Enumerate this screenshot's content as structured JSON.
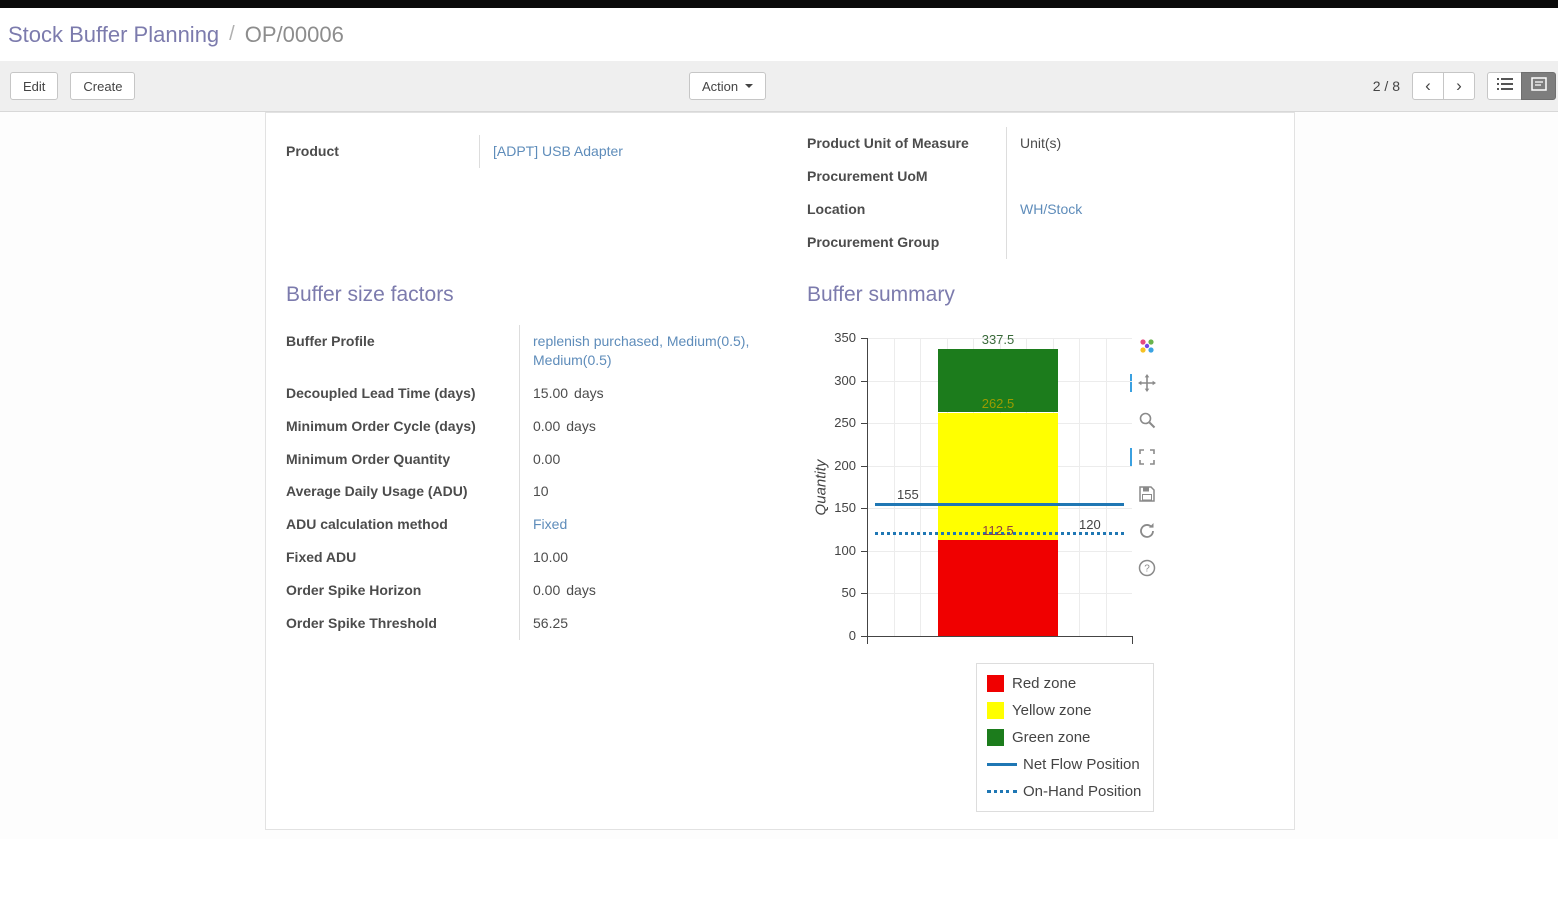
{
  "breadcrumb": {
    "root": "Stock Buffer Planning",
    "separator": "/",
    "current": "OP/00006"
  },
  "control_panel": {
    "edit_label": "Edit",
    "create_label": "Create",
    "action_label": "Action",
    "pager": "2 / 8",
    "prev_arrow": "‹",
    "next_arrow": "›"
  },
  "form": {
    "top_left_fields": [
      {
        "label": "Product",
        "value": "[ADPT] USB Adapter",
        "link": true
      }
    ],
    "top_right_fields": [
      {
        "label": "Product Unit of Measure",
        "value": "Unit(s)"
      },
      {
        "label": "Procurement UoM",
        "value": ""
      },
      {
        "label": "Location",
        "value": "WH/Stock",
        "link": true
      },
      {
        "label": "Procurement Group",
        "value": ""
      }
    ],
    "factors_title": "Buffer size factors",
    "factors_rows": [
      {
        "label": "Buffer Profile",
        "value": "replenish purchased, Medium(0.5), Medium(0.5)",
        "link": true
      },
      {
        "label": "Decoupled Lead Time (days)",
        "value": "15.00",
        "suffix": "days"
      },
      {
        "label": "Minimum Order Cycle (days)",
        "value": "0.00",
        "suffix": "days"
      },
      {
        "label": "Minimum Order Quantity",
        "value": "0.00"
      },
      {
        "label": "Average Daily Usage (ADU)",
        "value": "10"
      },
      {
        "label": "ADU calculation method",
        "value": "Fixed",
        "link": true
      },
      {
        "label": "Fixed ADU",
        "value": "10.00"
      },
      {
        "label": "Order Spike Horizon",
        "value": "0.00",
        "suffix": "days"
      },
      {
        "label": "Order Spike Threshold",
        "value": "56.25"
      }
    ],
    "summary_title": "Buffer summary"
  },
  "chart_data": {
    "type": "bar",
    "ylabel": "Quantity",
    "ylim": [
      0,
      350
    ],
    "yticks": [
      0,
      50,
      100,
      150,
      200,
      250,
      300,
      350
    ],
    "zones": [
      {
        "name": "Red zone",
        "from": 0,
        "to": 112.5,
        "color": "#f00000"
      },
      {
        "name": "Yellow zone",
        "from": 112.5,
        "to": 262.5,
        "color": "#ffff00"
      },
      {
        "name": "Green zone",
        "from": 262.5,
        "to": 337.5,
        "color": "#1c7c1c"
      }
    ],
    "lines": [
      {
        "name": "Net Flow Position",
        "value": 155,
        "style": "solid",
        "color": "#1f77b4"
      },
      {
        "name": "On-Hand Position",
        "value": 120,
        "style": "dotted",
        "color": "#1f77b4"
      }
    ],
    "annotations": [
      {
        "text": "337.5",
        "value": 337.5,
        "color": "#3a6a3a",
        "align": "center"
      },
      {
        "text": "262.5",
        "value": 262.5,
        "color": "#9c9c00",
        "align": "center"
      },
      {
        "text": "112.5",
        "value": 112.5,
        "color": "#8f4040",
        "align": "center"
      },
      {
        "text": "155",
        "value": 155,
        "color": "#444444",
        "align": "left"
      },
      {
        "text": "120",
        "value": 120,
        "color": "#444444",
        "align": "right"
      }
    ],
    "legend": [
      {
        "label": "Red zone",
        "type": "fill",
        "color": "#f00000",
        "slug": "red-zone"
      },
      {
        "label": "Yellow zone",
        "type": "fill",
        "color": "#ffff00",
        "slug": "yellow-zone"
      },
      {
        "label": "Green zone",
        "type": "fill",
        "color": "#1c7c1c",
        "slug": "green-zone"
      },
      {
        "label": "Net Flow Position",
        "type": "line",
        "style": "solid",
        "color": "#1f77b4",
        "slug": "net-flow-position"
      },
      {
        "label": "On-Hand Position",
        "type": "line",
        "style": "dotted",
        "color": "#1f77b4",
        "slug": "on-hand-position"
      }
    ],
    "modebar": [
      {
        "name": "plotly-logo",
        "active": false
      },
      {
        "name": "pan",
        "active": true
      },
      {
        "name": "zoom",
        "active": false
      },
      {
        "name": "autoscale",
        "active": true
      },
      {
        "name": "save",
        "active": false
      },
      {
        "name": "reset-axes",
        "active": false
      },
      {
        "name": "help",
        "active": false
      }
    ]
  }
}
